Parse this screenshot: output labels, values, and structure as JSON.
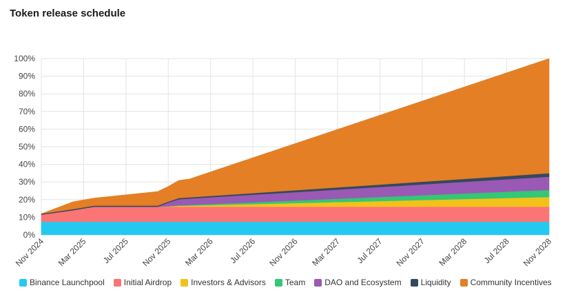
{
  "page_title": "Token release schedule",
  "chart_data": {
    "type": "area",
    "stacked": true,
    "title": "Token release schedule",
    "xlabel": "",
    "ylabel": "",
    "ylim": [
      0,
      100
    ],
    "y_ticks": [
      "0%",
      "10%",
      "20%",
      "30%",
      "40%",
      "50%",
      "60%",
      "70%",
      "80%",
      "90%",
      "100%"
    ],
    "x_ticks": [
      "Nov 2024",
      "Mar 2025",
      "Jul 2025",
      "Nov 2025",
      "Mar 2026",
      "Jul 2026",
      "Nov 2026",
      "Mar 2027",
      "Jul 2027",
      "Nov 2027",
      "Mar 2028",
      "Jul 2028",
      "Nov 2028"
    ],
    "grid": true,
    "legend_position": "bottom",
    "x": [
      "Nov 2024",
      "Feb 2025",
      "Apr 2025",
      "Oct 2025",
      "Nov 2025",
      "Dec 2025",
      "Jan 2026",
      "Nov 2028"
    ],
    "series": [
      {
        "name": "Binance Launchpool",
        "color": "#25c9f0",
        "values": [
          7.5,
          7.5,
          7.5,
          7.5,
          7.5,
          7.5,
          7.5,
          7.5
        ]
      },
      {
        "name": "Initial Airdrop",
        "color": "#fb7476",
        "values": [
          4.0,
          6.5,
          8.5,
          8.5,
          8.5,
          8.5,
          8.5,
          8.5
        ]
      },
      {
        "name": "Investors & Advisors",
        "color": "#f2c21b",
        "values": [
          0,
          0,
          0,
          0,
          0.2,
          0.5,
          0.6,
          5.5
        ]
      },
      {
        "name": "Team",
        "color": "#33c776",
        "values": [
          0,
          0,
          0,
          0,
          0.1,
          0.3,
          0.4,
          4.0
        ]
      },
      {
        "name": "DAO and Ecosystem",
        "color": "#9a59b4",
        "values": [
          0,
          0,
          0,
          0,
          2.0,
          3.4,
          3.6,
          7.5
        ]
      },
      {
        "name": "Liquidity",
        "color": "#34495e",
        "values": [
          0.5,
          0.6,
          0.6,
          0.6,
          0.6,
          0.7,
          0.7,
          2.0
        ]
      },
      {
        "name": "Community Incentives",
        "color": "#e47f25",
        "values": [
          0,
          4.2,
          4.3,
          8.0,
          8.6,
          10.0,
          10.4,
          65.0
        ]
      }
    ]
  }
}
